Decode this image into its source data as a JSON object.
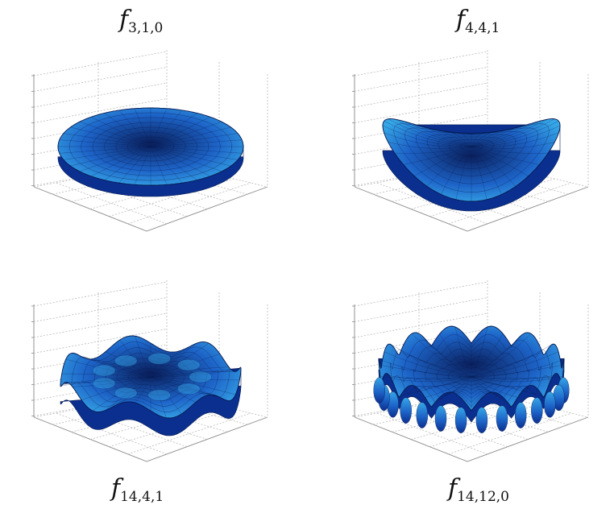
{
  "figure": {
    "plots": [
      {
        "id": "f310",
        "letter": "f",
        "sub": "3,1,0",
        "kind": "ellipse"
      },
      {
        "id": "f441",
        "letter": "f",
        "sub": "4,4,1",
        "kind": "saddle",
        "waves": 2
      },
      {
        "id": "f1441",
        "letter": "f",
        "sub": "14,4,1",
        "kind": "bumpy",
        "waves": 7
      },
      {
        "id": "f14120",
        "letter": "f",
        "sub": "14,12,0",
        "kind": "crown",
        "waves": 14
      }
    ],
    "colors": {
      "surface_dark": "#0b2f8f",
      "surface_mid": "#1d64c8",
      "surface_light": "#36a6e6",
      "mesh": "#061b52",
      "grid": "#b9b9b9"
    }
  }
}
